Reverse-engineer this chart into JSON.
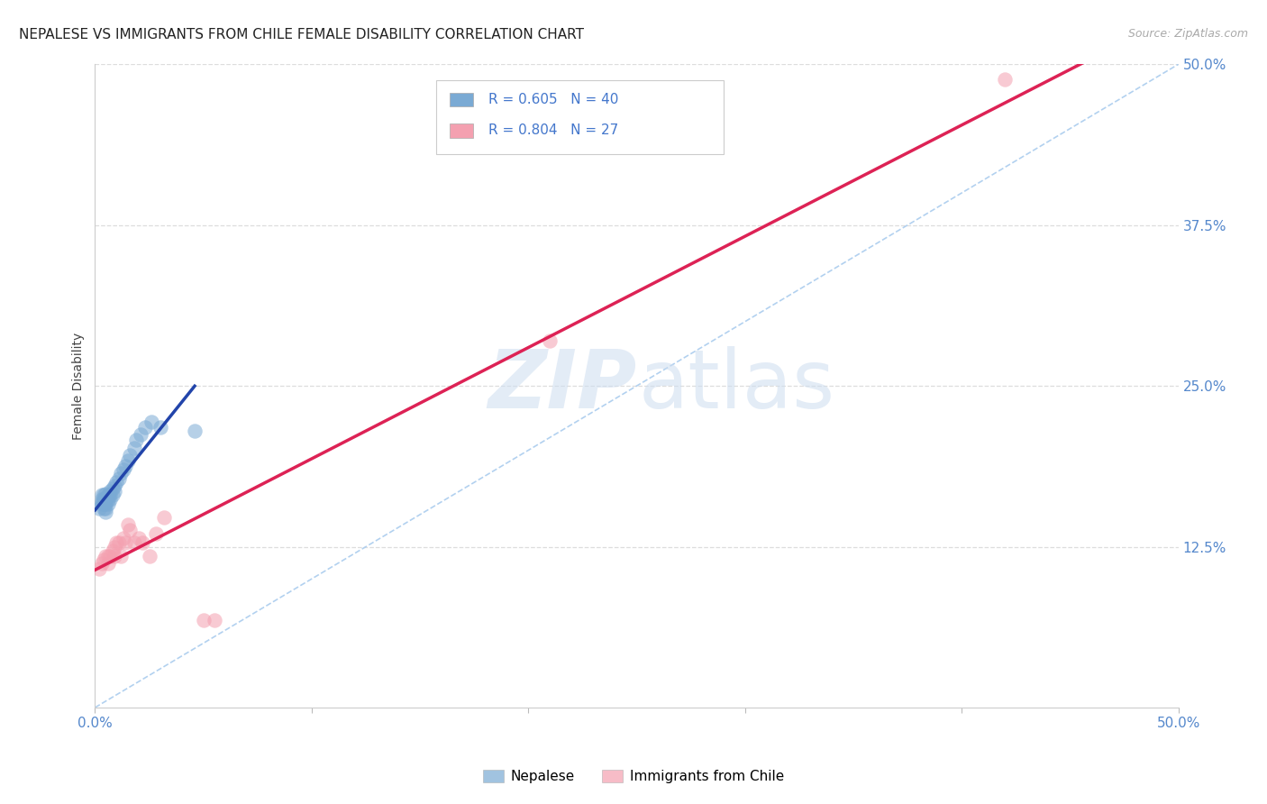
{
  "title": "NEPALESE VS IMMIGRANTS FROM CHILE FEMALE DISABILITY CORRELATION CHART",
  "source": "Source: ZipAtlas.com",
  "ylabel": "Female Disability",
  "xlim": [
    0.0,
    0.5
  ],
  "ylim": [
    0.0,
    0.5
  ],
  "x_ticks": [
    0.0,
    0.1,
    0.2,
    0.3,
    0.4,
    0.5
  ],
  "x_tick_labels": [
    "0.0%",
    "",
    "",
    "",
    "",
    "50.0%"
  ],
  "y_ticks_right": [
    0.0,
    0.125,
    0.25,
    0.375,
    0.5
  ],
  "y_tick_labels_right": [
    "",
    "12.5%",
    "25.0%",
    "37.5%",
    "50.0%"
  ],
  "grid_color": "#dddddd",
  "series1_color": "#7aaad4",
  "series2_color": "#f4a0b0",
  "trend1_color": "#2244aa",
  "trend2_color": "#dd2255",
  "diagonal_color": "#aaccee",
  "legend_r1": "R = 0.605",
  "legend_n1": "N = 40",
  "legend_r2": "R = 0.804",
  "legend_n2": "N = 27",
  "legend_label1": "Nepalese",
  "legend_label2": "Immigrants from Chile",
  "nepalese_x": [
    0.002,
    0.003,
    0.003,
    0.003,
    0.003,
    0.004,
    0.004,
    0.004,
    0.004,
    0.004,
    0.005,
    0.005,
    0.005,
    0.005,
    0.005,
    0.005,
    0.006,
    0.006,
    0.006,
    0.007,
    0.007,
    0.007,
    0.008,
    0.008,
    0.009,
    0.009,
    0.01,
    0.011,
    0.012,
    0.013,
    0.014,
    0.015,
    0.016,
    0.018,
    0.019,
    0.021,
    0.023,
    0.026,
    0.03,
    0.046
  ],
  "nepalese_y": [
    0.155,
    0.158,
    0.16,
    0.162,
    0.165,
    0.155,
    0.158,
    0.16,
    0.162,
    0.165,
    0.152,
    0.155,
    0.158,
    0.16,
    0.163,
    0.166,
    0.158,
    0.162,
    0.165,
    0.162,
    0.165,
    0.168,
    0.165,
    0.17,
    0.168,
    0.172,
    0.175,
    0.178,
    0.182,
    0.185,
    0.188,
    0.192,
    0.196,
    0.202,
    0.208,
    0.212,
    0.218,
    0.222,
    0.218,
    0.215
  ],
  "chile_x": [
    0.002,
    0.003,
    0.004,
    0.005,
    0.006,
    0.006,
    0.007,
    0.008,
    0.009,
    0.009,
    0.01,
    0.011,
    0.012,
    0.013,
    0.014,
    0.015,
    0.016,
    0.018,
    0.02,
    0.022,
    0.025,
    0.028,
    0.032,
    0.05,
    0.055,
    0.21,
    0.42
  ],
  "chile_y": [
    0.108,
    0.112,
    0.115,
    0.118,
    0.112,
    0.118,
    0.118,
    0.122,
    0.118,
    0.125,
    0.128,
    0.128,
    0.118,
    0.132,
    0.128,
    0.142,
    0.138,
    0.128,
    0.132,
    0.128,
    0.118,
    0.135,
    0.148,
    0.068,
    0.068,
    0.285,
    0.488
  ]
}
